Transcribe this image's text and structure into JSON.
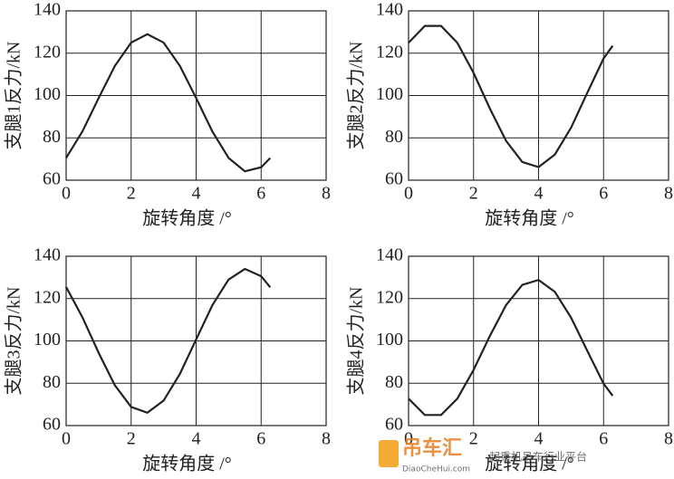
{
  "chart_data": [
    {
      "type": "line",
      "ylabel": "支腿1反力/kN",
      "xlabel": "旋转角度 /°",
      "color": "#222222",
      "grid": true,
      "x": [
        0,
        0.5,
        1,
        1.5,
        2,
        2.5,
        3,
        3.5,
        4,
        4.5,
        5,
        5.5,
        6,
        6.28
      ],
      "values": [
        70.5,
        83,
        98.8,
        114,
        125,
        129,
        125,
        114,
        98.8,
        83,
        70.5,
        64.2,
        66.1,
        70.5
      ],
      "xlim": [
        0,
        8
      ],
      "xticks": [
        0,
        2,
        4,
        6,
        8
      ],
      "ylim": [
        60,
        140
      ],
      "yticks": [
        60,
        80,
        100,
        120,
        140
      ]
    },
    {
      "type": "line",
      "ylabel": "支腿2反力/kN",
      "xlabel": "旋转角度 /°",
      "color": "#222222",
      "grid": true,
      "x": [
        0,
        0.5,
        1,
        1.5,
        2,
        2.5,
        3,
        3.5,
        4,
        4.5,
        5,
        5.5,
        6,
        6.28
      ],
      "values": [
        124.9,
        132.9,
        132.9,
        124.9,
        110.7,
        93.9,
        78.6,
        68.6,
        66.2,
        72.1,
        84.8,
        101.3,
        117.5,
        123.5
      ],
      "xlim": [
        0,
        8
      ],
      "xticks": [
        0,
        2,
        4,
        6,
        8
      ],
      "ylim": [
        60,
        140
      ],
      "yticks": [
        60,
        80,
        100,
        120,
        140
      ]
    },
    {
      "type": "line",
      "ylabel": "支腿3反力/kN",
      "xlabel": "旋转角度 /°",
      "color": "#222222",
      "grid": true,
      "x": [
        0,
        0.5,
        1,
        1.5,
        2,
        2.5,
        3,
        3.5,
        4,
        4.5,
        5,
        5.5,
        6,
        6.28
      ],
      "values": [
        125.5,
        111.2,
        94.4,
        79,
        68.8,
        66.1,
        71.8,
        84.4,
        100.7,
        116.9,
        129,
        134,
        130.6,
        125.3
      ],
      "xlim": [
        0,
        8
      ],
      "xticks": [
        0,
        2,
        4,
        6,
        8
      ],
      "ylim": [
        60,
        140
      ],
      "yticks": [
        60,
        80,
        100,
        120,
        140
      ]
    },
    {
      "type": "line",
      "ylabel": "支腿4反力/kN",
      "xlabel": "旋转角度 /°",
      "color": "#222222",
      "grid": true,
      "x": [
        0,
        0.5,
        1,
        1.5,
        2,
        2.5,
        3,
        3.5,
        4,
        4.5,
        5,
        5.5,
        6,
        6.28
      ],
      "values": [
        72.7,
        65,
        65,
        72.7,
        86.3,
        102.3,
        116.9,
        126.5,
        128.8,
        123.2,
        111,
        95.3,
        79.8,
        74.1
      ],
      "xlim": [
        0,
        8
      ],
      "xticks": [
        0,
        2,
        4,
        6,
        8
      ],
      "ylim": [
        60,
        140
      ],
      "yticks": [
        60,
        80,
        100,
        120,
        140
      ]
    }
  ],
  "watermark": {
    "title": "吊车汇",
    "url": "DiaoCheHui.com",
    "slogan": "起重机吊车行业平台"
  }
}
